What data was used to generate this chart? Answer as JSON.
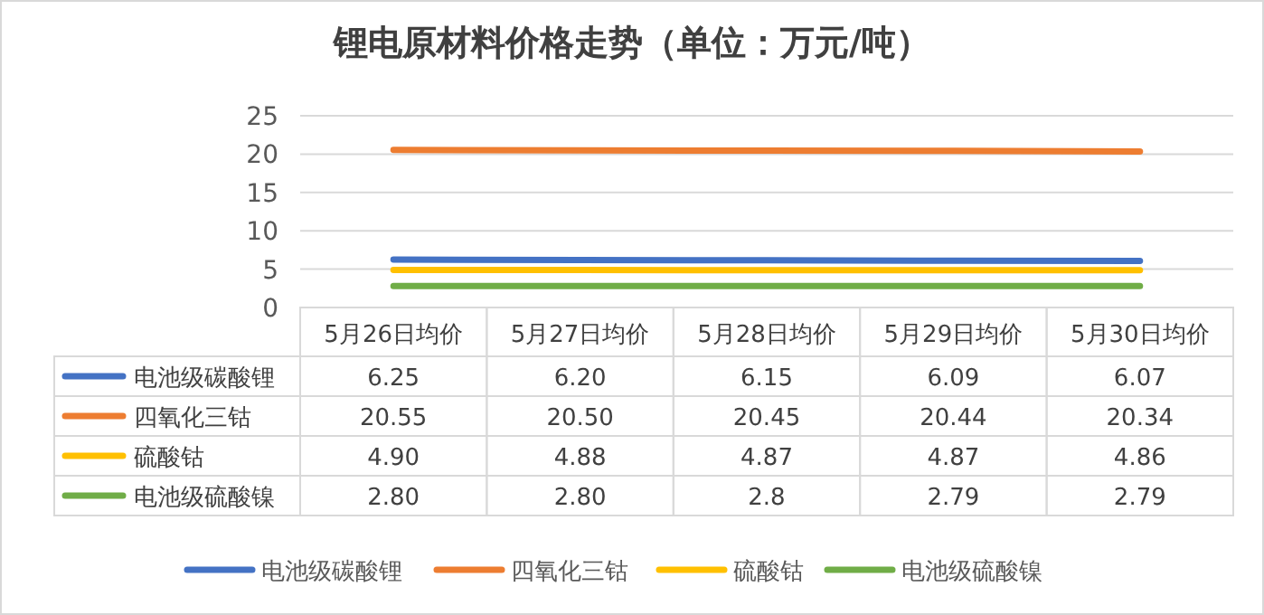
{
  "chart_data": {
    "type": "line",
    "title": "锂电原材料价格走势（单位：万元/吨）",
    "categories": [
      "5月26日均价",
      "5月27日均价",
      "5月28日均价",
      "5月29日均价",
      "5月30日均价"
    ],
    "series": [
      {
        "name": "电池级碳酸锂",
        "color": "#4472c4",
        "values": [
          6.25,
          6.2,
          6.15,
          6.09,
          6.07
        ],
        "value_labels": [
          "6.25",
          "6.20",
          "6.15",
          "6.09",
          "6.07"
        ]
      },
      {
        "name": "四氧化三钴",
        "color": "#ed7d31",
        "values": [
          20.55,
          20.5,
          20.45,
          20.44,
          20.34
        ],
        "value_labels": [
          "20.55",
          "20.50",
          "20.45",
          "20.44",
          "20.34"
        ]
      },
      {
        "name": "硫酸钴",
        "color": "#ffc000",
        "values": [
          4.9,
          4.88,
          4.87,
          4.87,
          4.86
        ],
        "value_labels": [
          "4.90",
          "4.88",
          "4.87",
          "4.87",
          "4.86"
        ]
      },
      {
        "name": "电池级硫酸镍",
        "color": "#70ad47",
        "values": [
          2.8,
          2.8,
          2.8,
          2.79,
          2.79
        ],
        "value_labels": [
          "2.80",
          "2.80",
          "2.8",
          "2.79",
          "2.79"
        ]
      }
    ],
    "ylim": [
      0,
      25
    ],
    "yticks": [
      0,
      5,
      10,
      15,
      20,
      25
    ],
    "grid": "y",
    "legend": "bottom",
    "marker": "none",
    "line_style": "solid"
  }
}
